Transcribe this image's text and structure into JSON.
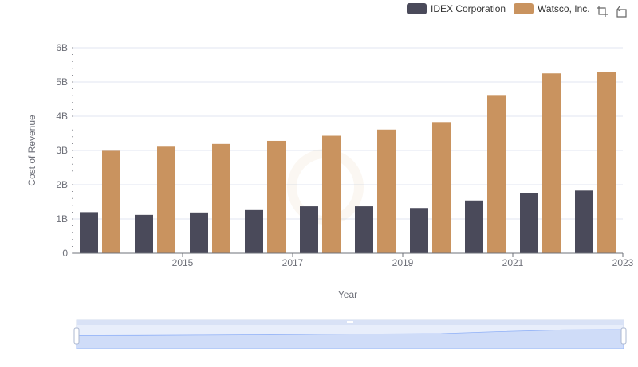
{
  "chart_data": {
    "type": "bar",
    "xlabel": "Year",
    "ylabel": "Cost of Revenue",
    "ylim": [
      0,
      6000000000
    ],
    "y_ticks": [
      "0",
      "1B",
      "2B",
      "3B",
      "4B",
      "5B",
      "6B"
    ],
    "x_tick_labels": [
      "2015",
      "2017",
      "2019",
      "2021",
      "2023"
    ],
    "categories": [
      "2014",
      "2015",
      "2016",
      "2017",
      "2018",
      "2019",
      "2020",
      "2021",
      "2022",
      "2023"
    ],
    "series": [
      {
        "name": "IDEX Corporation",
        "color": "#4a4a5a",
        "values": [
          1200000000,
          1120000000,
          1190000000,
          1260000000,
          1370000000,
          1370000000,
          1320000000,
          1540000000,
          1750000000,
          1830000000
        ]
      },
      {
        "name": "Watsco, Inc.",
        "color": "#c9935f",
        "values": [
          2990000000,
          3110000000,
          3190000000,
          3280000000,
          3430000000,
          3610000000,
          3830000000,
          4620000000,
          5250000000,
          5290000000
        ]
      }
    ],
    "legend_position": "top-right",
    "grid": true
  },
  "toolbox": {
    "zoom_icon": "zoom-icon",
    "restore_icon": "restore-icon"
  }
}
